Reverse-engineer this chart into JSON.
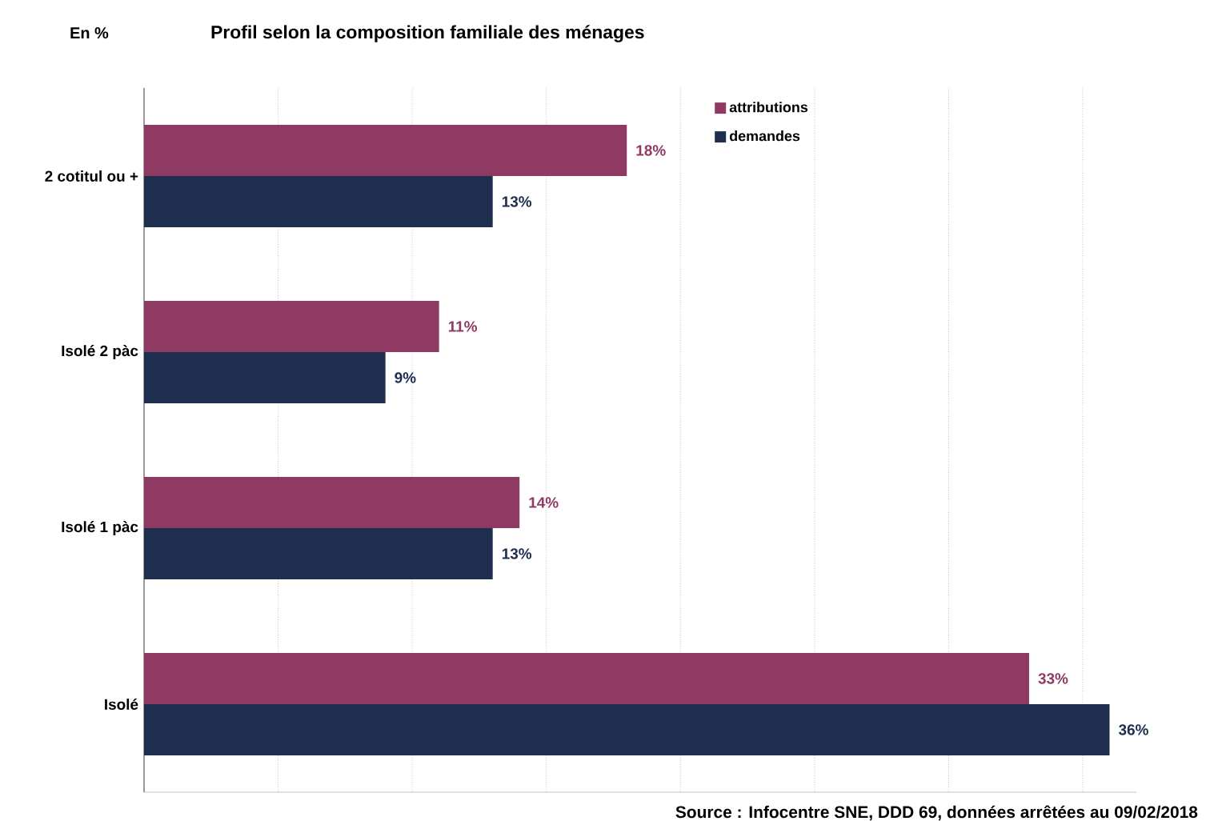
{
  "chart_data": {
    "type": "bar",
    "orientation": "horizontal",
    "title": "Profil selon la composition familiale des ménages",
    "categories": [
      "2 cotitul ou +",
      "Isolé 2 pàc",
      "Isolé 1 pàc",
      "Isolé"
    ],
    "series": [
      {
        "name": "attributions",
        "color": "#8e3a63",
        "values": [
          18,
          11,
          14,
          33
        ],
        "value_labels": [
          "18%",
          "11%",
          "14%",
          "33%"
        ]
      },
      {
        "name": "demandes",
        "color": "#1f2d4e",
        "values": [
          13,
          9,
          13,
          36
        ],
        "value_labels": [
          "13%",
          "9%",
          "13%",
          "36%"
        ]
      }
    ],
    "xlim": [
      0,
      37
    ],
    "xticks": [
      {
        "value": 5,
        "label": null
      },
      {
        "value": 10,
        "label": null
      },
      {
        "value": 15,
        "label": null
      },
      {
        "value": 20,
        "label": null
      },
      {
        "value": 25,
        "label": null
      },
      {
        "value": 30,
        "label": null
      },
      {
        "value": 35,
        "label": null
      }
    ],
    "tick_labels": "y",
    "grid": "x",
    "legend": "top right",
    "annotations": [
      "En %",
      "Source : Infocentre SNE, DDD 69, données arrêtées au 09/02/2018"
    ]
  }
}
